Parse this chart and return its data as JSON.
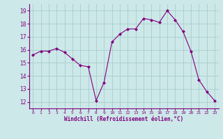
{
  "x": [
    0,
    1,
    2,
    3,
    4,
    5,
    6,
    7,
    8,
    9,
    10,
    11,
    12,
    13,
    14,
    15,
    16,
    17,
    18,
    19,
    20,
    21,
    22,
    23
  ],
  "y": [
    15.6,
    15.9,
    15.9,
    16.1,
    15.8,
    15.3,
    14.8,
    14.7,
    12.1,
    13.5,
    16.6,
    17.2,
    17.6,
    17.6,
    18.4,
    18.3,
    18.1,
    19.0,
    18.3,
    17.4,
    15.9,
    13.7,
    12.8,
    12.1
  ],
  "line_color": "#800080",
  "marker": "D",
  "marker_size": 2.0,
  "bg_color": "#cce8e8",
  "grid_color": "#aacccc",
  "xlabel": "Windchill (Refroidissement éolien,°C)",
  "xlabel_color": "#800080",
  "tick_color": "#800080",
  "axis_color": "#800080",
  "ylabel_ticks": [
    12,
    13,
    14,
    15,
    16,
    17,
    18,
    19
  ],
  "xlim": [
    -0.5,
    23.5
  ],
  "ylim": [
    11.5,
    19.5
  ]
}
